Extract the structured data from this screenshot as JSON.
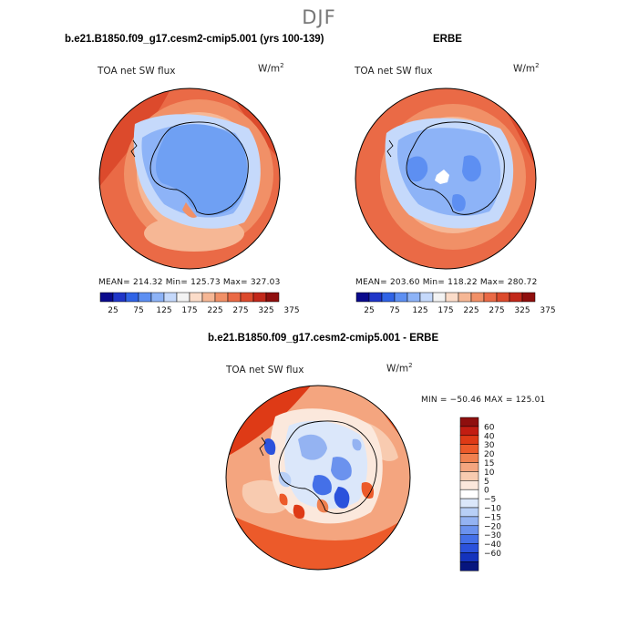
{
  "season": "DJF",
  "panels": {
    "model": {
      "title": "b.e21.B1850.f09_g17.cesm2-cmip5.001 (yrs 100-139)",
      "variable": "TOA net SW flux",
      "units": "W/m",
      "units_exp": "2",
      "stats": "MEAN= 214.32   Min= 125.73   Max= 327.03"
    },
    "obs": {
      "title": "ERBE",
      "variable": "TOA net SW flux",
      "units": "W/m",
      "units_exp": "2",
      "stats": "MEAN= 203.60   Min= 118.22   Max= 280.72"
    },
    "diff": {
      "title": "b.e21.B1850.f09_g17.cesm2-cmip5.001 - ERBE",
      "variable": "TOA net SW flux",
      "units": "W/m",
      "units_exp": "2",
      "stats": "MIN = −50.46  MAX = 125.01"
    }
  },
  "colorbar_abs": {
    "colors": [
      "#0a0a8c",
      "#1f35c8",
      "#2f63e6",
      "#5d8ff2",
      "#8db3f7",
      "#c5d9fb",
      "#f3f3f3",
      "#fbdcc9",
      "#f6b795",
      "#f19067",
      "#ea6a46",
      "#dc4a2c",
      "#c2281a",
      "#8f0f0e"
    ],
    "ticks": [
      "25",
      "75",
      "125",
      "175",
      "225",
      "275",
      "325",
      "375"
    ]
  },
  "colorbar_diff": {
    "colors": [
      "#8f0f0e",
      "#c21d12",
      "#de3a16",
      "#ec5a2a",
      "#f08150",
      "#f4a57f",
      "#f8cbb0",
      "#fbe8dc",
      "#ffffff",
      "#dbe7fa",
      "#b8cff6",
      "#94b3f2",
      "#6b92ee",
      "#4470e8",
      "#2b52dc",
      "#1433bd",
      "#06157e"
    ],
    "ticks": [
      "60",
      "40",
      "30",
      "20",
      "15",
      "10",
      "5",
      "0",
      "−5",
      "−10",
      "−15",
      "−20",
      "−30",
      "−40",
      "−60"
    ]
  }
}
